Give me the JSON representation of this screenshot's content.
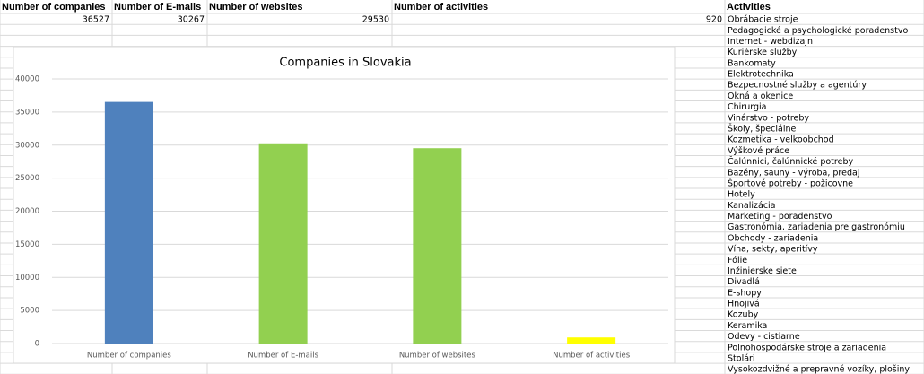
{
  "activities": {
    "header": "Activities",
    "items": [
      "Obrábacie stroje",
      "Pedagogické a psychologické poradenstvo",
      "Internet - webdizajn",
      "Kuriérske služby",
      "Bankomaty",
      "Elektrotechnika",
      "Bezpecnostné služby a agentúry",
      "Okná a okenice",
      "Chirurgia",
      "Vinárstvo - potreby",
      "Školy, špeciálne",
      "Kozmetika - velkoobchod",
      "Výškové práce",
      "Čalúnnici, čalúnnické potreby",
      "Bazény, sauny - výroba, predaj",
      "Športové potreby - požicovne",
      "Hotely",
      "Kanalizácia",
      "Marketing - poradenstvo",
      "Gastronómia, zariadenia pre gastronómiu",
      "Obchody - zariadenia",
      "Vína, sekty, aperitívy",
      "Fólie",
      "Inžinierske siete",
      "Divadlá",
      "E-shopy",
      "Hnojivá",
      "Kozuby",
      "Keramika",
      "Odevy - cistiarne",
      "Polnohospodárske stroje a zariadenia",
      "Stolári",
      "Vysokozdvižné a prepravné vozíky, plošiny"
    ]
  },
  "chart_data": {
    "type": "bar",
    "title": "Companies in Slovakia",
    "categories": [
      "Number of companies",
      "Number of E-mails",
      "Number of websites",
      "Number of activities"
    ],
    "values": [
      36527,
      30267,
      29530,
      920
    ],
    "colors": [
      "#4f81bd",
      "#92d050",
      "#92d050",
      "#ffff00"
    ],
    "ylim": [
      0,
      40000
    ],
    "yticks": [
      0,
      5000,
      10000,
      15000,
      20000,
      25000,
      30000,
      35000,
      40000
    ],
    "grid": true
  }
}
